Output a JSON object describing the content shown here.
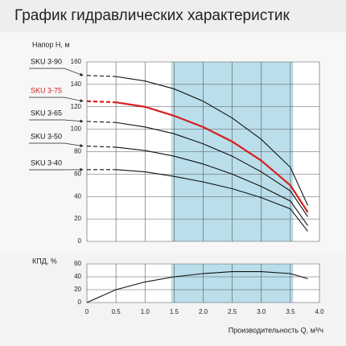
{
  "title": "График гидравлических характеристик",
  "chart_data": [
    {
      "type": "line",
      "y_label": "Напор Н, м",
      "ylim": [
        0,
        160
      ],
      "yticks": [
        0,
        20,
        40,
        60,
        80,
        100,
        120,
        140,
        160
      ],
      "highlight": [
        1.45,
        3.55
      ],
      "highlight_color": "#a9d6e5",
      "dashed_until": 0.5,
      "x": [
        0,
        0.5,
        1,
        1.5,
        2,
        2.5,
        3,
        3.5,
        3.8
      ],
      "series": [
        {
          "name": "SKU 3-90",
          "color": "#111111",
          "values": [
            148,
            147,
            143,
            136,
            125,
            110,
            91,
            66,
            32
          ]
        },
        {
          "name": "SKU 3-75",
          "color": "#d42020",
          "values": [
            125,
            124,
            120,
            112,
            102,
            89,
            72,
            50,
            26
          ]
        },
        {
          "name": "SKU 3-65",
          "color": "#111111",
          "values": [
            107,
            106,
            102,
            96,
            87,
            76,
            62,
            45,
            22
          ]
        },
        {
          "name": "SKU 3-50",
          "color": "#111111",
          "values": [
            85,
            84,
            81,
            76,
            69,
            60,
            49,
            36,
            14
          ]
        },
        {
          "name": "SKU 3-40",
          "color": "#111111",
          "values": [
            64,
            64,
            62,
            58,
            53,
            47,
            39,
            29,
            9
          ]
        }
      ]
    },
    {
      "type": "line",
      "y_label": "КПД, %",
      "ylim": [
        0,
        60
      ],
      "yticks": [
        0,
        20,
        40,
        60
      ],
      "highlight": [
        1.45,
        3.55
      ],
      "highlight_color": "#a9d6e5",
      "x_label": "Производительность Q, м³/ч",
      "xlim": [
        0,
        4
      ],
      "xticks": [
        {
          "value": 0,
          "label": "0"
        },
        0.5,
        {
          "value": 1,
          "label": "1.0"
        },
        1.5,
        {
          "value": 2,
          "label": "2.0"
        },
        2.5,
        {
          "value": 3,
          "label": "3.0"
        },
        3.5,
        {
          "value": 4,
          "label": "4.0"
        }
      ],
      "x": [
        0,
        0.5,
        1,
        1.5,
        2,
        2.5,
        3,
        3.5,
        3.8
      ],
      "series": [
        {
          "name": "КПД",
          "color": "#111111",
          "values": [
            0,
            20,
            32,
            40,
            45,
            48,
            48,
            45,
            37
          ]
        }
      ]
    }
  ]
}
